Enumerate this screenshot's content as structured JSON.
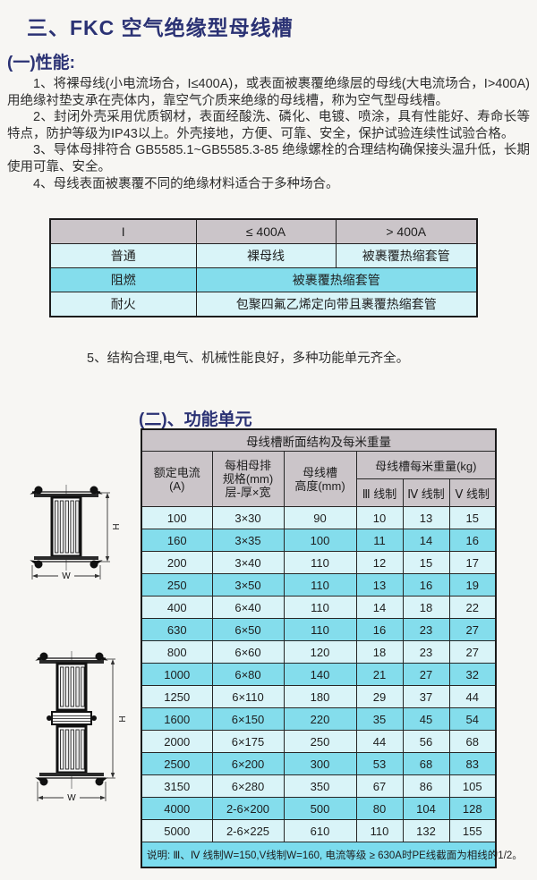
{
  "page_title": "三、FKC 空气绝缘型母线槽",
  "performance": {
    "heading": "(一)性能:",
    "paragraphs": [
      "1、将裸母线(小电流场合，I≤400A)，或表面被裹覆绝缘层的母线(大电流场合，I>400A)用绝缘衬垫支承在壳体内，靠空气介质来绝缘的母线槽，称为空气型母线槽。",
      "2、封闭外壳采用优质钢材，表面经酸洗、磷化、电镀、喷涂，具有性能好、寿命长等特点，防护等级为IP43以上。外壳接地，方便、可靠、安全，保护试验连续性试验合格。",
      "3、导体母排符合 GB5585.1~GB5585.3-85 绝缘螺栓的合理结构确保接头温升低，长期使用可靠、安全。",
      "4、母线表面被裹覆不同的绝缘材料适合于多种场合。"
    ],
    "item5": "5、结构合理,电气、机械性能良好，多种功能单元齐全。"
  },
  "insulation_table": {
    "header": [
      "I",
      "≤ 400A",
      "> 400A"
    ],
    "row_putong": {
      "label": "普通",
      "cell1": "裸母线",
      "cell2": "被裹覆热缩套管"
    },
    "row_zuran": {
      "label": "阻燃",
      "cell": "被裹覆热缩套管"
    },
    "row_naihuo": {
      "label": "耐火",
      "cell": "包聚四氟乙烯定向带且裹覆热缩套管"
    }
  },
  "function_unit": {
    "heading": "(二)、功能单元"
  },
  "spec_table": {
    "title": "母线槽断面结构及每米重量",
    "col_current": "额定电流\n(A)",
    "col_spec": "每相母排\n规格(mm)\n层-厚×宽",
    "col_height": "母线槽\n高度(mm)",
    "col_weight_group": "母线槽每米重量(kg)",
    "col_w3": "Ⅲ 线制",
    "col_w4": "Ⅳ 线制",
    "col_w5": "Ⅴ 线制",
    "rows": [
      [
        "100",
        "3×30",
        "90",
        "10",
        "13",
        "15"
      ],
      [
        "160",
        "3×35",
        "100",
        "11",
        "14",
        "16"
      ],
      [
        "200",
        "3×40",
        "110",
        "12",
        "15",
        "17"
      ],
      [
        "250",
        "3×50",
        "110",
        "13",
        "16",
        "19"
      ],
      [
        "400",
        "6×40",
        "110",
        "14",
        "18",
        "22"
      ],
      [
        "630",
        "6×50",
        "110",
        "16",
        "23",
        "27"
      ],
      [
        "800",
        "6×60",
        "120",
        "18",
        "23",
        "27"
      ],
      [
        "1000",
        "6×80",
        "140",
        "21",
        "27",
        "32"
      ],
      [
        "1250",
        "6×110",
        "180",
        "29",
        "37",
        "44"
      ],
      [
        "1600",
        "6×150",
        "220",
        "35",
        "45",
        "54"
      ],
      [
        "2000",
        "6×175",
        "250",
        "44",
        "56",
        "68"
      ],
      [
        "2500",
        "6×200",
        "300",
        "53",
        "68",
        "83"
      ],
      [
        "3150",
        "6×280",
        "350",
        "67",
        "86",
        "105"
      ],
      [
        "4000",
        "2-6×200",
        "500",
        "80",
        "104",
        "128"
      ],
      [
        "5000",
        "2-6×225",
        "610",
        "110",
        "132",
        "155"
      ]
    ],
    "note": "说明: Ⅲ、Ⅳ 线制W=150,V线制W=160, 电流等级 ≥ 630A时PE线截面为相线的1/2。"
  },
  "diagrams": {
    "h_label": "H",
    "w_label": "W"
  },
  "colors": {
    "accent_navy": "#2b3274",
    "table_header_bg": "#cbc5c9",
    "row_light": "#d9f4f8",
    "row_dark": "#84ddec",
    "note_bg": "#7bdcee",
    "border_dark": "#1c1c1c"
  }
}
